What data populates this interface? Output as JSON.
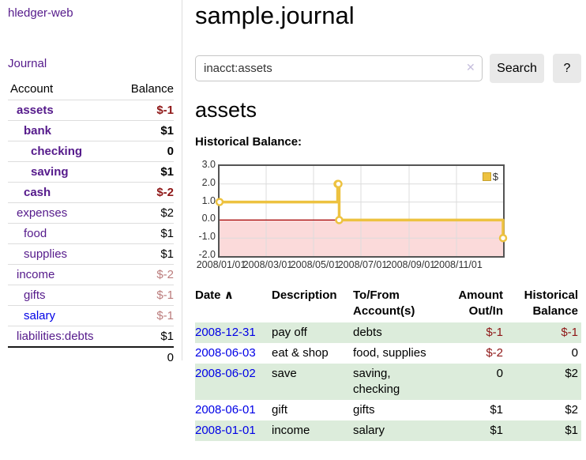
{
  "app": {
    "brand": "hledger-web",
    "nav": {
      "journal": "Journal"
    }
  },
  "sidebar": {
    "header": {
      "account": "Account",
      "balance": "Balance"
    },
    "accounts": [
      {
        "name": "assets",
        "balance": "$-1",
        "indent": 0,
        "bold": true,
        "balance_tone": "neg",
        "link_tone": "visited"
      },
      {
        "name": "bank",
        "balance": "$1",
        "indent": 1,
        "bold": true,
        "balance_tone": "pos",
        "link_tone": "visited"
      },
      {
        "name": "checking",
        "balance": "0",
        "indent": 2,
        "bold": true,
        "balance_tone": "pos",
        "link_tone": "visited"
      },
      {
        "name": "saving",
        "balance": "$1",
        "indent": 2,
        "bold": true,
        "balance_tone": "pos",
        "link_tone": "visited"
      },
      {
        "name": "cash",
        "balance": "$-2",
        "indent": 1,
        "bold": true,
        "balance_tone": "neg",
        "link_tone": "visited"
      },
      {
        "name": "expenses",
        "balance": "$2",
        "indent": 0,
        "bold": false,
        "balance_tone": "pos",
        "link_tone": "visited"
      },
      {
        "name": "food",
        "balance": "$1",
        "indent": 1,
        "bold": false,
        "balance_tone": "pos",
        "link_tone": "visited"
      },
      {
        "name": "supplies",
        "balance": "$1",
        "indent": 1,
        "bold": false,
        "balance_tone": "pos",
        "link_tone": "visited"
      },
      {
        "name": "income",
        "balance": "$-2",
        "indent": 0,
        "bold": false,
        "balance_tone": "negdim",
        "link_tone": "visited"
      },
      {
        "name": "gifts",
        "balance": "$-1",
        "indent": 1,
        "bold": false,
        "balance_tone": "negdim",
        "link_tone": "visited"
      },
      {
        "name": "salary",
        "balance": "$-1",
        "indent": 1,
        "bold": false,
        "balance_tone": "negdim",
        "link_tone": "unvisited"
      },
      {
        "name": "liabilities:debts",
        "balance": "$1",
        "indent": 0,
        "bold": false,
        "balance_tone": "pos",
        "link_tone": "visited"
      }
    ],
    "total": "0"
  },
  "main": {
    "title": "sample.journal",
    "search": {
      "value": "inacct:assets",
      "clear_icon": "✕",
      "search_button": "Search",
      "help_button": "?"
    },
    "account_heading": "assets",
    "section_label": "Historical Balance:"
  },
  "chart_data": {
    "type": "line",
    "title": "Historical Balance",
    "step": true,
    "series": [
      {
        "name": "$",
        "points": [
          [
            "2008-01-01",
            1
          ],
          [
            "2008-06-01",
            2
          ],
          [
            "2008-06-02",
            2
          ],
          [
            "2008-06-03",
            0
          ],
          [
            "2008-12-31",
            -1
          ]
        ]
      }
    ],
    "xlim": [
      "2008-01-01",
      "2008-12-31"
    ],
    "ylim": [
      -2,
      3
    ],
    "y_ticks": [
      "3.0",
      "2.0",
      "1.0",
      "0.0",
      "-1.0",
      "-2.0"
    ],
    "x_ticks": [
      {
        "label": "2008/01/01",
        "date": "2008-01-01"
      },
      {
        "label": "2008/03/01",
        "date": "2008-03-01"
      },
      {
        "label": "2008/05/01",
        "date": "2008-05-01"
      },
      {
        "label": "2008/07/01",
        "date": "2008-07-01"
      },
      {
        "label": "2008/09/01",
        "date": "2008-09-01"
      },
      {
        "label": "2008/11/01",
        "date": "2008-11-01"
      }
    ],
    "legend": {
      "label": "$",
      "position": "top-right"
    },
    "grid": true,
    "colors": {
      "line": "#edc240",
      "marker_fill": "#ffffff",
      "negative_region": "#fbdada",
      "zero_line": "#a40000",
      "grid": "#dcdcdc",
      "border": "#545454"
    }
  },
  "register": {
    "headers": {
      "date": "Date",
      "sort_indicator": "∧",
      "description": "Description",
      "accounts": "To/From Account(s)",
      "amount": "Amount Out/In",
      "balance": "Historical Balance"
    },
    "rows": [
      {
        "date": "2008-12-31",
        "description": "pay off",
        "accounts": "debts",
        "amount": "$-1",
        "amount_tone": "neg",
        "balance": "$-1",
        "balance_tone": "neg",
        "striped": true
      },
      {
        "date": "2008-06-03",
        "description": "eat & shop",
        "accounts": "food, supplies",
        "amount": "$-2",
        "amount_tone": "neg",
        "balance": "0",
        "balance_tone": "pos",
        "striped": false
      },
      {
        "date": "2008-06-02",
        "description": "save",
        "accounts": "saving,\nchecking",
        "amount": "0",
        "amount_tone": "pos",
        "balance": "$2",
        "balance_tone": "pos",
        "striped": true
      },
      {
        "date": "2008-06-01",
        "description": "gift",
        "accounts": "gifts",
        "amount": "$1",
        "amount_tone": "pos",
        "balance": "$2",
        "balance_tone": "pos",
        "striped": false
      },
      {
        "date": "2008-01-01",
        "description": "income",
        "accounts": "salary",
        "amount": "$1",
        "amount_tone": "pos",
        "balance": "$1",
        "balance_tone": "pos",
        "striped": true
      }
    ]
  }
}
